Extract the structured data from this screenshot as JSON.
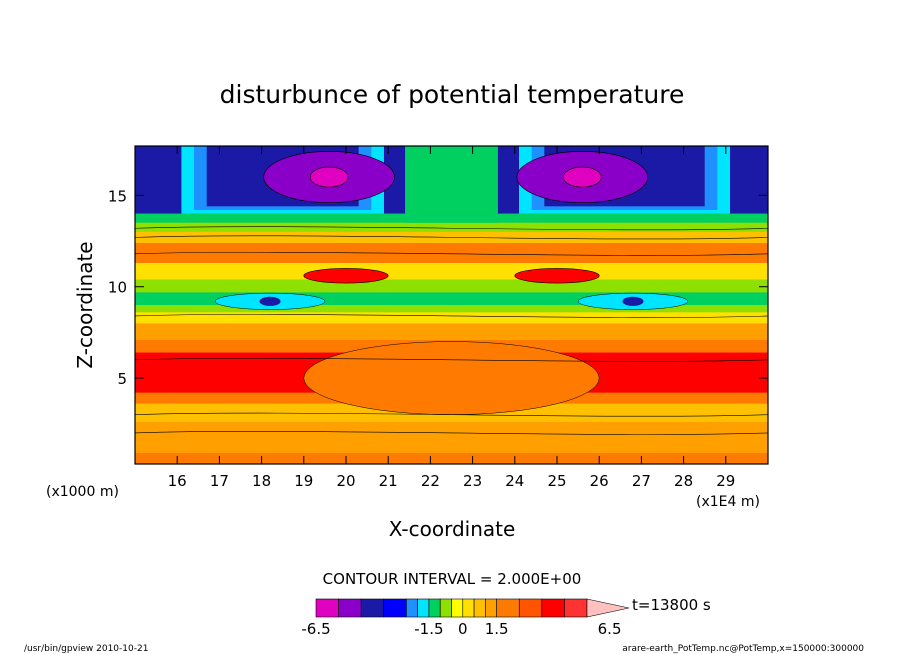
{
  "chart_data": {
    "type": "heatmap",
    "title": "disturbunce of potential temperature",
    "xlabel": "X-coordinate",
    "ylabel": "Z-coordinate",
    "x_unit": "(x1E4 m)",
    "y_unit": "(x1000 m)",
    "xlim": [
      15.0,
      30.0
    ],
    "ylim": [
      0.3,
      17.7
    ],
    "x_ticks": [
      16,
      17,
      18,
      19,
      20,
      21,
      22,
      23,
      24,
      25,
      26,
      27,
      28,
      29
    ],
    "y_ticks": [
      5,
      10,
      15
    ],
    "contour_interval_label": "CONTOUR INTERVAL = 2.000E+00",
    "colorbar": {
      "levels": [
        -6.5,
        -5.5,
        -4.5,
        -3.5,
        -2.5,
        -2.0,
        -1.5,
        -1.0,
        -0.5,
        0.0,
        0.5,
        1.0,
        1.5,
        2.5,
        3.5,
        4.5,
        5.5,
        6.5
      ],
      "tick_labels": [
        "-6.5",
        "-1.5",
        "0",
        "1.5",
        "6.5"
      ],
      "tick_values": [
        -6.5,
        -1.5,
        0.0,
        1.5,
        6.5
      ],
      "colors": [
        "#e000c0",
        "#8a00c8",
        "#1a1aa6",
        "#0000ff",
        "#1e90ff",
        "#00e5ff",
        "#00d060",
        "#8ee000",
        "#ffff00",
        "#ffe000",
        "#ffc000",
        "#ffa000",
        "#ff7a00",
        "#ff5500",
        "#ff0000",
        "#ff3333",
        "#ff7f7f",
        "#ffc0c0"
      ],
      "time_label": "t=13800 s"
    },
    "footer_left": "/usr/bin/gpview   2010-10-21",
    "footer_right": "arare-earth_PotTemp.nc@PotTemp,x=150000:300000",
    "grid": false
  }
}
